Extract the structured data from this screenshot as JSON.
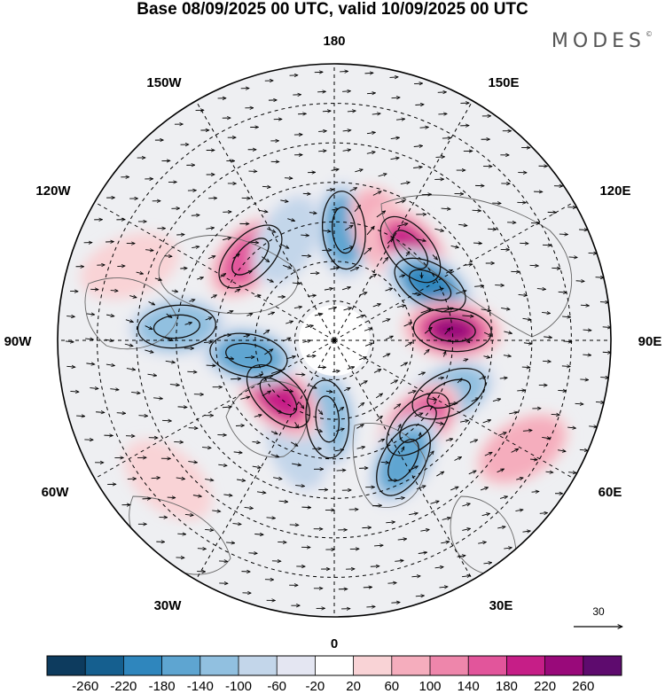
{
  "title": "Base 08/09/2025 00 UTC, valid 10/09/2025 00 UTC",
  "brand": "MODES",
  "brand_mark": "©",
  "longitude_labels": {
    "lon_180": "180",
    "lon_150E": "150E",
    "lon_120E": "120E",
    "lon_90E": "90E",
    "lon_60E": "60E",
    "lon_30E": "30E",
    "lon_0": "0",
    "lon_30W": "30W",
    "lon_60W": "60W",
    "lon_90W": "90W",
    "lon_120W": "120W",
    "lon_150W": "150W"
  },
  "vector_reference": {
    "label": "30"
  },
  "colorbar": {
    "ticks": [
      "-260",
      "-220",
      "-180",
      "-140",
      "-100",
      "-60",
      "-20",
      "20",
      "60",
      "100",
      "140",
      "180",
      "220",
      "260"
    ],
    "colors": [
      "#0d3b5e",
      "#155f8f",
      "#2f86bd",
      "#5ea5d1",
      "#91c0e0",
      "#c3d6ea",
      "#e4e6f2",
      "#ffffff",
      "#f9d3d6",
      "#f5adbd",
      "#ee86ab",
      "#e2559b",
      "#c61e87",
      "#99097a",
      "#5e0b6e"
    ]
  },
  "anomaly_cells": [
    {
      "lon": 175,
      "lat": 62,
      "sign": "neg",
      "level": 4
    },
    {
      "lon": 155,
      "lat": 60,
      "sign": "pos",
      "level": 2
    },
    {
      "lon": 140,
      "lat": 60,
      "sign": "pos",
      "level": 5
    },
    {
      "lon": 120,
      "lat": 62,
      "sign": "neg",
      "level": 5
    },
    {
      "lon": 95,
      "lat": 60,
      "sign": "pos",
      "level": 6
    },
    {
      "lon": 65,
      "lat": 58,
      "sign": "neg",
      "level": 3
    },
    {
      "lon": 45,
      "lat": 60,
      "sign": "pos",
      "level": 4
    },
    {
      "lon": 30,
      "lat": 55,
      "sign": "neg",
      "level": 4
    },
    {
      "lon": -5,
      "lat": 70,
      "sign": "neg",
      "level": 3
    },
    {
      "lon": -20,
      "lat": 62,
      "sign": "neg",
      "level": 2
    },
    {
      "lon": -45,
      "lat": 70,
      "sign": "pos",
      "level": 5
    },
    {
      "lon": -80,
      "lat": 68,
      "sign": "neg",
      "level": 4
    },
    {
      "lon": -95,
      "lat": 50,
      "sign": "neg",
      "level": 3
    },
    {
      "lon": -135,
      "lat": 60,
      "sign": "pos",
      "level": 4
    },
    {
      "lon": -155,
      "lat": 62,
      "sign": "neg",
      "level": 2
    },
    {
      "lon": 60,
      "lat": 35,
      "sign": "pos",
      "level": 2
    },
    {
      "lon": -50,
      "lat": 35,
      "sign": "pos",
      "level": 1
    },
    {
      "lon": -110,
      "lat": 35,
      "sign": "pos",
      "level": 1
    }
  ]
}
